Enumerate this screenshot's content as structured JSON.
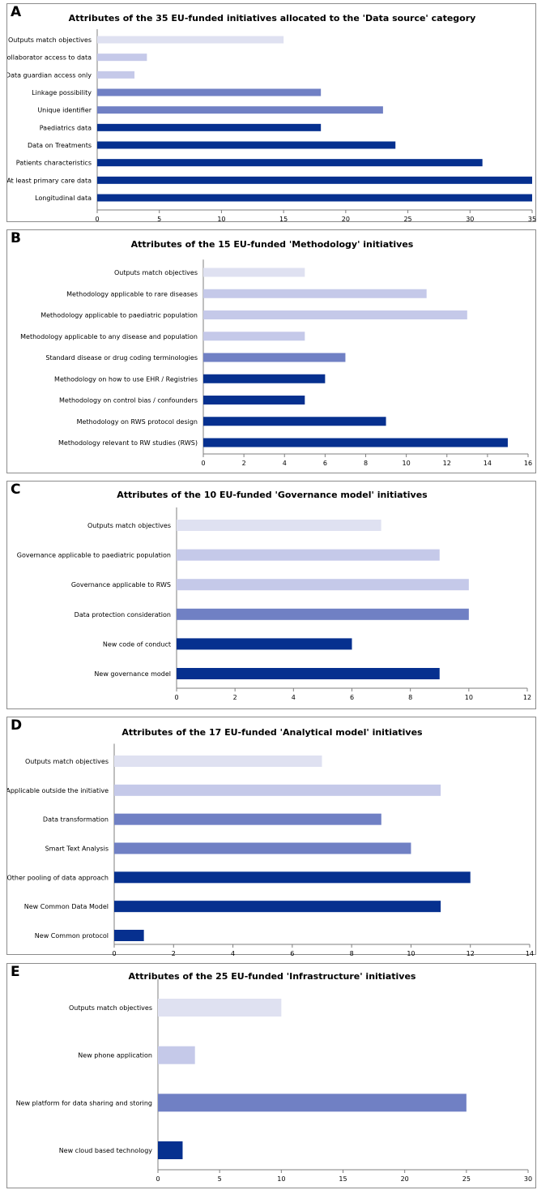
{
  "chart_data": [
    {
      "type": "bar",
      "panel": "A",
      "title": "Attributes of the 35 EU-funded  initiatives allocated to the 'Data source' category",
      "categories": [
        "Outputs match objectives",
        "Collaborator access to data",
        "Data guardian access only",
        "Linkage possibility",
        "Unique identifier",
        "Paediatrics data",
        "Data on Treatments",
        "Patients characteristics",
        "At least primary care data",
        "Longitudinal data"
      ],
      "values": [
        15,
        4,
        3,
        18,
        23,
        18,
        24,
        31,
        35,
        35
      ],
      "colors": [
        "#dfe1f1",
        "#c5c9e9",
        "#c5c9e9",
        "#7080c4",
        "#7080c4",
        "#06308f",
        "#06308f",
        "#06308f",
        "#06308f",
        "#06308f"
      ],
      "xlim": [
        0,
        35
      ],
      "xticks": [
        0,
        5,
        10,
        15,
        20,
        25,
        30,
        35
      ],
      "grid": false,
      "orientation": "horizontal"
    },
    {
      "type": "bar",
      "panel": "B",
      "title": "Attributes of the 15 EU-funded 'Methodology' initiatives",
      "categories": [
        "Outputs match objectives",
        "Methodology applicable to rare diseases",
        "Methodology applicable to paediatric population",
        "Methodology applicable to any disease and population",
        "Standard disease or drug coding terminologies",
        "Methodology on how to use EHR / Registries",
        "Methodology on control bias / confounders",
        "Methodology on RWS protocol design",
        "Methodology relevant to RW studies (RWS)"
      ],
      "values": [
        5,
        11,
        13,
        5,
        7,
        6,
        5,
        9,
        15
      ],
      "colors": [
        "#dfe1f1",
        "#c5c9e9",
        "#c5c9e9",
        "#c5c9e9",
        "#7080c4",
        "#06308f",
        "#06308f",
        "#06308f",
        "#06308f"
      ],
      "xlim": [
        0,
        16
      ],
      "xticks": [
        0,
        2,
        4,
        6,
        8,
        10,
        12,
        14,
        16
      ],
      "grid": false,
      "orientation": "horizontal"
    },
    {
      "type": "bar",
      "panel": "C",
      "title": "Attributes of the 10 EU-funded 'Governance model' initiatives",
      "categories": [
        "Outputs match objectives",
        "Governance applicable to paediatric population",
        "Governance applicable to RWS",
        "Data protection consideration",
        "New code of conduct",
        "New governance model"
      ],
      "values": [
        7,
        9,
        10,
        10,
        6,
        9
      ],
      "colors": [
        "#dfe1f1",
        "#c5c9e9",
        "#c5c9e9",
        "#7080c4",
        "#06308f",
        "#06308f"
      ],
      "xlim": [
        0,
        12
      ],
      "xticks": [
        0,
        2,
        4,
        6,
        8,
        10,
        12
      ],
      "grid": false,
      "orientation": "horizontal"
    },
    {
      "type": "bar",
      "panel": "D",
      "title": "Attributes of the 17 EU-funded 'Analytical model' initiatives",
      "categories": [
        "Outputs match objectives",
        "Applicable outside the initiative",
        "Data transformation",
        "Smart Text Analysis",
        "Other pooling of data approach",
        "New Common Data Model",
        "New Common protocol"
      ],
      "values": [
        7,
        11,
        9,
        10,
        12,
        11,
        1
      ],
      "colors": [
        "#dfe1f1",
        "#c5c9e9",
        "#7080c4",
        "#7080c4",
        "#06308f",
        "#06308f",
        "#06308f"
      ],
      "xlim": [
        0,
        14
      ],
      "xticks": [
        0,
        2,
        4,
        6,
        8,
        10,
        12,
        14
      ],
      "grid": false,
      "orientation": "horizontal"
    },
    {
      "type": "bar",
      "panel": "E",
      "title": "Attributes of the 25 EU-funded 'Infrastructure' initiatives",
      "categories": [
        "Outputs match objectives",
        "New phone application",
        "New platform for data sharing and storing",
        "New cloud based technology"
      ],
      "values": [
        10,
        3,
        25,
        2
      ],
      "colors": [
        "#dfe1f1",
        "#c5c9e9",
        "#7080c4",
        "#06308f"
      ],
      "xlim": [
        0,
        30
      ],
      "xticks": [
        0,
        5,
        10,
        15,
        20,
        25,
        30
      ],
      "grid": false,
      "orientation": "horizontal"
    }
  ]
}
